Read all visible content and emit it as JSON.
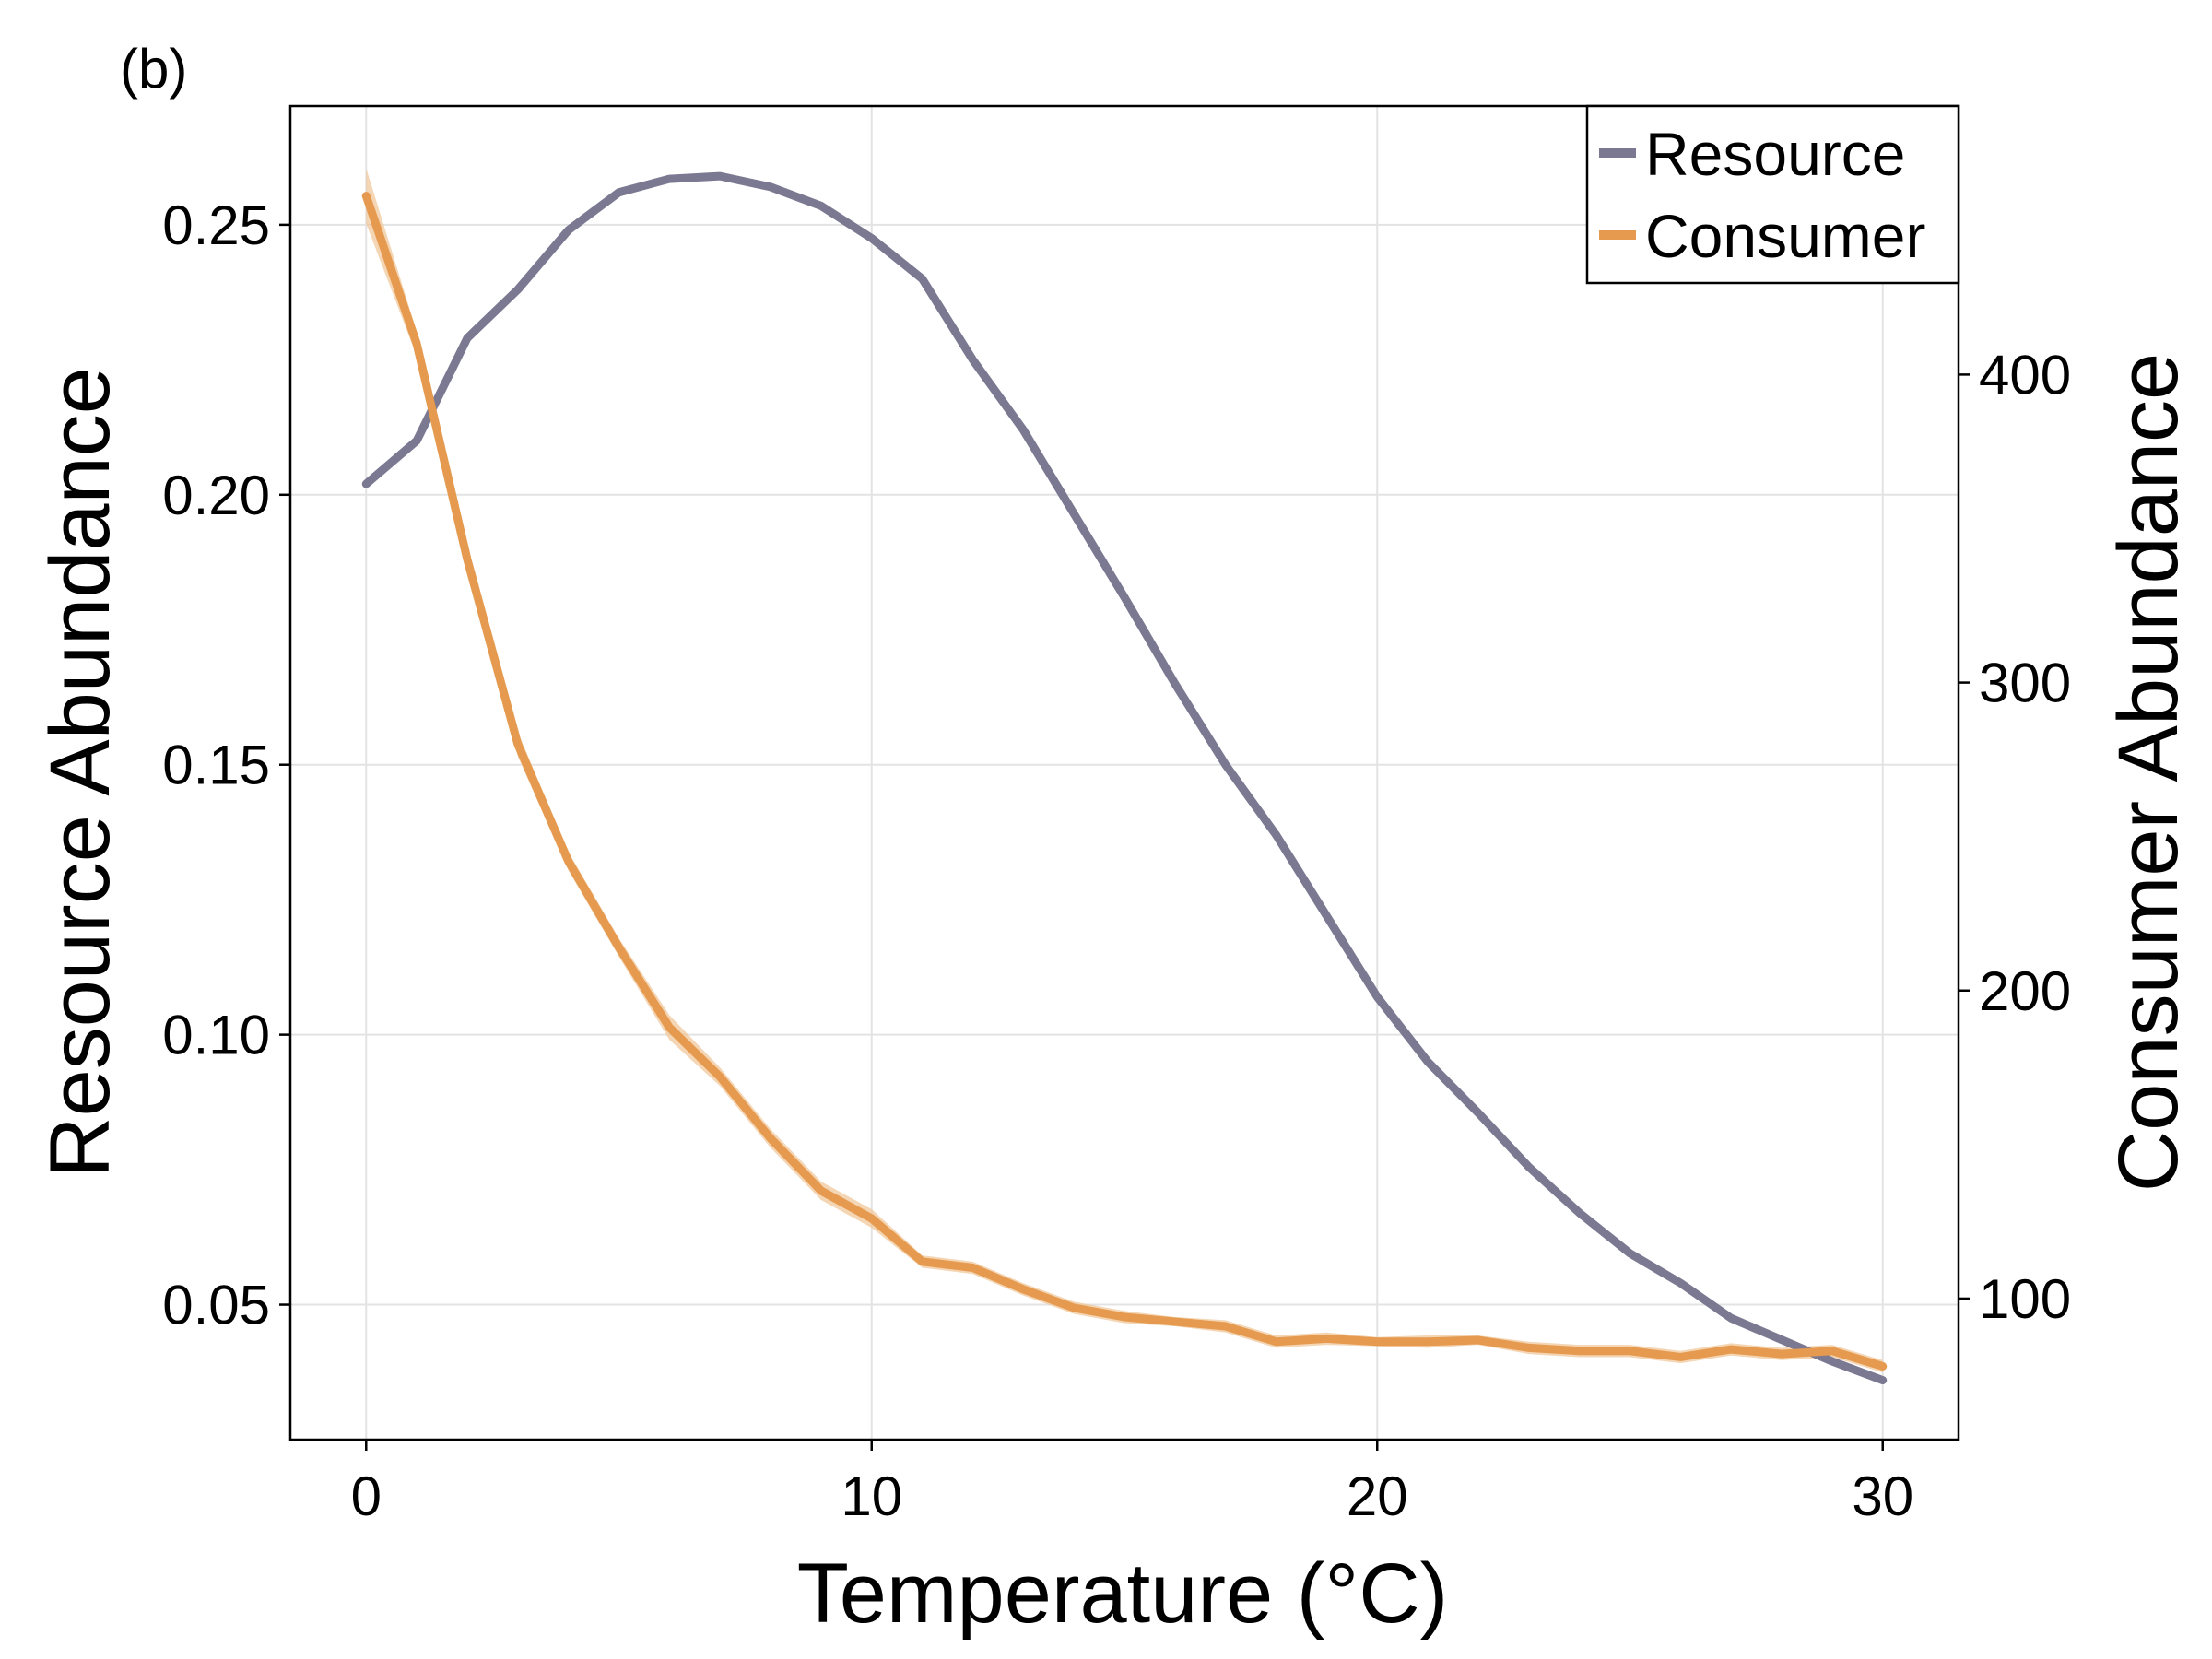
{
  "panel_label": "(b)",
  "chart_data": {
    "type": "line",
    "xlabel": "Temperature (°C)",
    "ylabel_left": "Resource Abundance",
    "ylabel_right": "Consumer Abundance",
    "xlim": [
      -1.5,
      31.5
    ],
    "ylim_left": [
      0.025,
      0.272
    ],
    "ylim_right": [
      54.2,
      487.2
    ],
    "x_ticks": [
      0,
      10,
      20,
      30
    ],
    "x_tick_labels": [
      "0",
      "10",
      "20",
      "30"
    ],
    "y_left_ticks": [
      0.05,
      0.1,
      0.15,
      0.2,
      0.25
    ],
    "y_left_tick_labels": [
      "0.05",
      "0.10",
      "0.15",
      "0.20",
      "0.25"
    ],
    "y_right_ticks": [
      100,
      200,
      300,
      400
    ],
    "y_right_tick_labels": [
      "100",
      "200",
      "300",
      "400"
    ],
    "grid": true,
    "legend_position": "top-right",
    "x": [
      0,
      1,
      2,
      3,
      4,
      5,
      6,
      7,
      8,
      9,
      10,
      11,
      12,
      13,
      14,
      15,
      16,
      17,
      18,
      19,
      20,
      21,
      22,
      23,
      24,
      25,
      26,
      27,
      28,
      29,
      30
    ],
    "series": [
      {
        "name": "Resource",
        "axis": "left",
        "color": "#7b7891",
        "values": [
          0.202,
          0.21,
          0.229,
          0.238,
          0.249,
          0.256,
          0.2585,
          0.259,
          0.257,
          0.2535,
          0.2475,
          0.24,
          0.225,
          0.212,
          0.1965,
          0.181,
          0.165,
          0.15,
          0.137,
          0.122,
          0.107,
          0.095,
          0.0855,
          0.0755,
          0.067,
          0.0595,
          0.054,
          0.0475,
          0.0435,
          0.0395,
          0.036
        ]
      },
      {
        "name": "Consumer",
        "axis": "right",
        "color": "#e59a4f",
        "band_color": "#f0c394",
        "values": [
          458,
          410,
          340,
          280,
          242,
          214,
          188,
          172,
          152,
          135,
          126,
          112,
          110,
          103,
          97,
          94,
          92.5,
          91,
          86,
          87,
          86,
          86,
          86.5,
          84,
          83,
          83,
          81,
          83.5,
          82,
          83,
          78
        ],
        "band_upper": [
          467,
          414,
          344,
          284,
          245,
          217,
          192,
          175,
          155,
          138,
          129,
          114,
          112,
          105,
          99,
          96,
          94,
          93,
          88,
          89,
          87.5,
          88,
          88,
          86,
          85,
          85,
          83,
          85.5,
          84,
          85,
          80
        ],
        "band_lower": [
          449,
          406,
          336,
          276,
          239,
          211,
          184,
          169,
          149,
          132,
          123,
          110,
          108,
          101,
          95,
          92,
          91,
          89,
          84,
          85,
          84.5,
          84,
          85,
          82,
          81,
          81,
          79,
          81.5,
          80,
          81,
          76
        ]
      }
    ]
  }
}
